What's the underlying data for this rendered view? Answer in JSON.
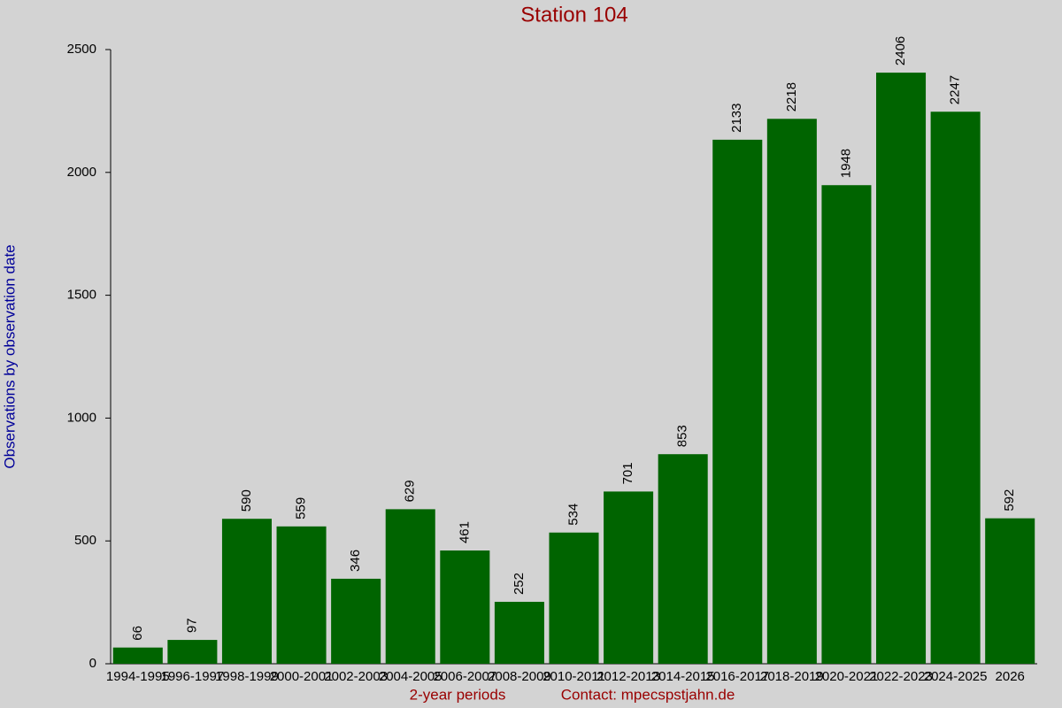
{
  "chart_data": {
    "type": "bar",
    "title": "Station 104",
    "x_label": "2-year periods",
    "contact": "Contact: mpecspstjahn.de",
    "y_label": "Observations by observation date",
    "categories": [
      "1994-1995",
      "1996-1997",
      "1998-1999",
      "2000-2001",
      "2002-2003",
      "2004-2005",
      "2006-2007",
      "2008-2009",
      "2010-2011",
      "2012-2013",
      "2014-2015",
      "2016-2017",
      "2018-2019",
      "2020-2021",
      "2022-2023",
      "2024-2025",
      "2026"
    ],
    "values": [
      66,
      97,
      590,
      559,
      346,
      629,
      461,
      252,
      534,
      701,
      853,
      2133,
      2218,
      1948,
      2406,
      2247,
      592
    ],
    "color": "#006400",
    "ylim": [
      0,
      2500
    ],
    "yticks": [
      0,
      500,
      1000,
      1500,
      2000,
      2500
    ],
    "grid": false
  }
}
